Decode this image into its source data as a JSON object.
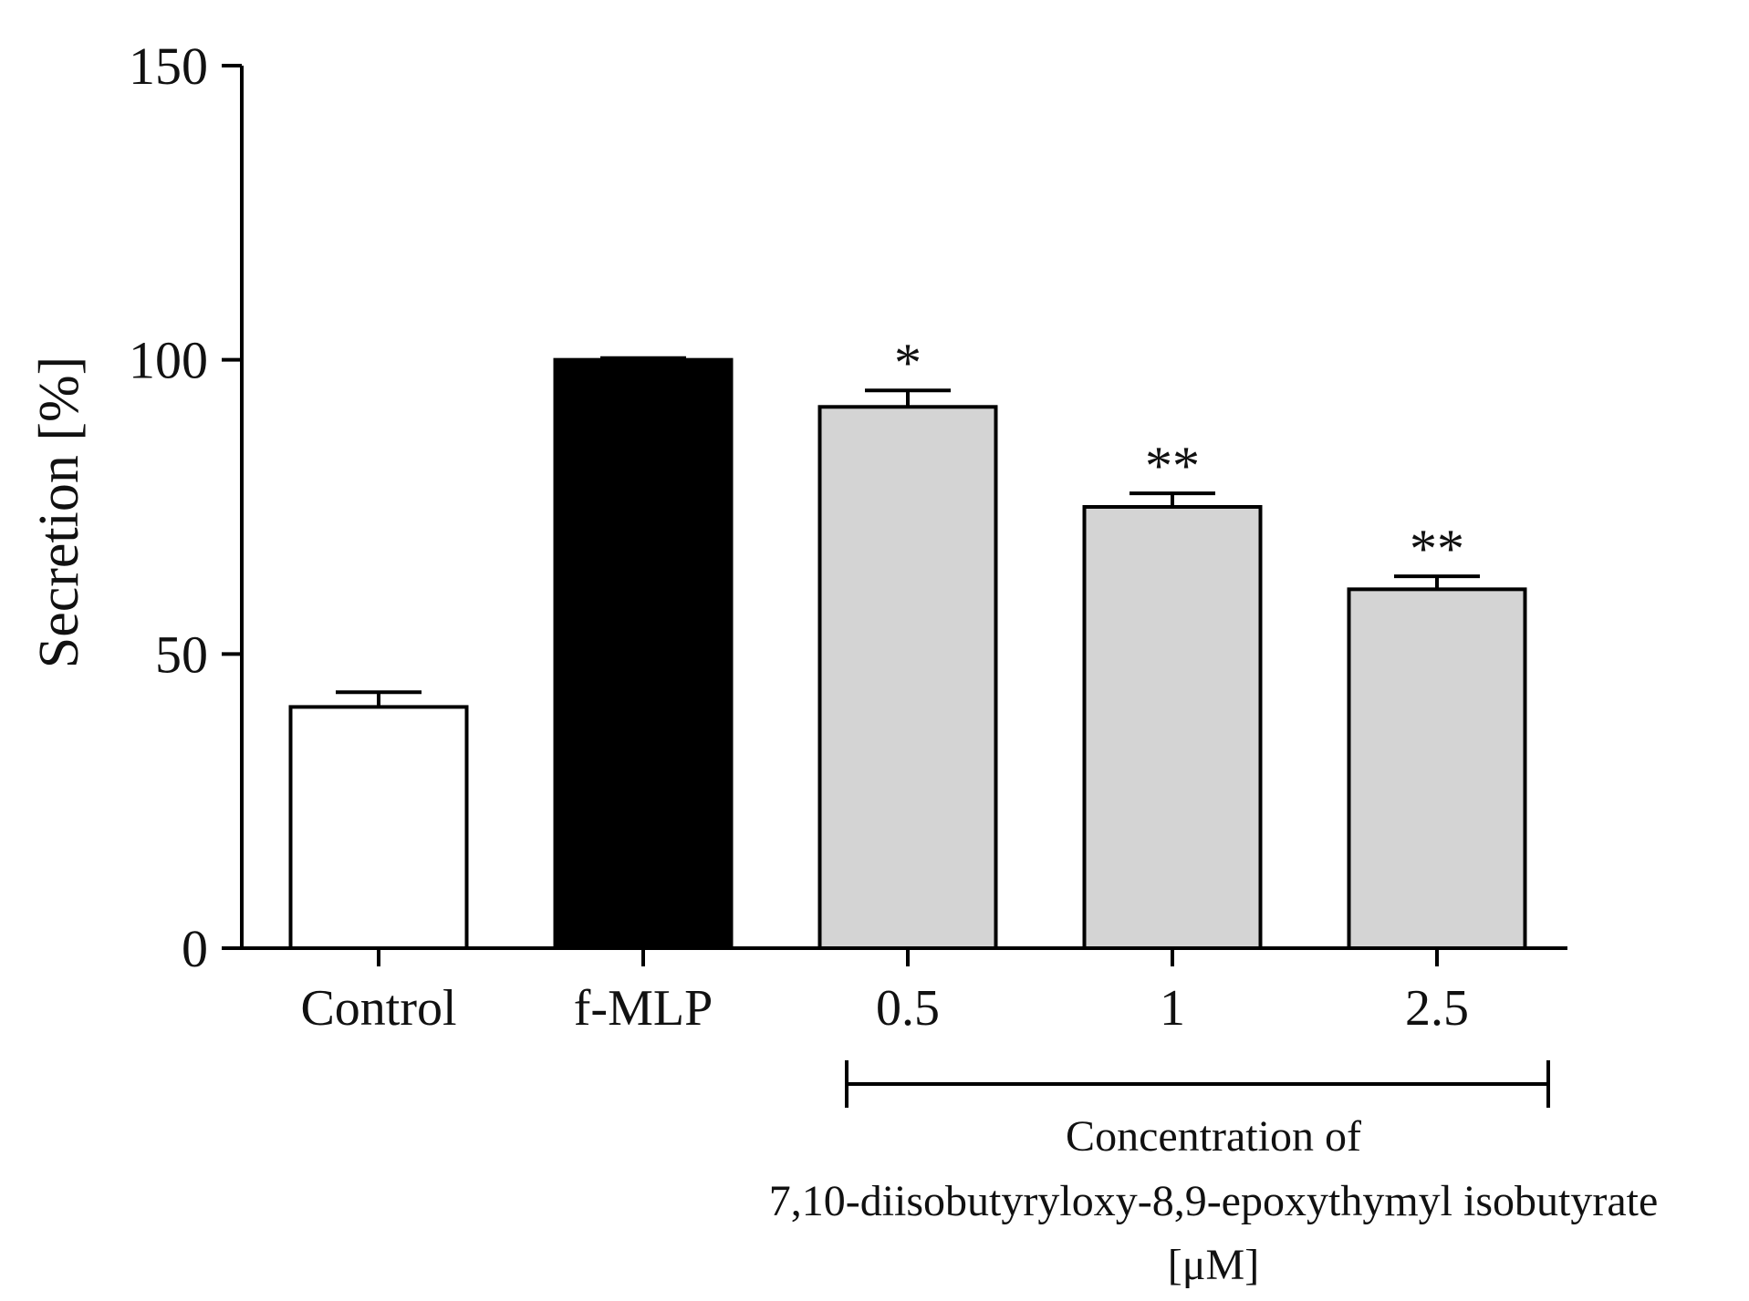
{
  "chart_data": {
    "type": "bar",
    "title": "",
    "xlabel": "",
    "ylabel": "Secretion [%]",
    "ylim": [
      0,
      150
    ],
    "yticks": [
      0,
      50,
      100,
      150
    ],
    "grid": false,
    "categories": [
      "Control",
      "f-MLP",
      "0.5",
      "1",
      "2.5"
    ],
    "values": [
      41,
      100,
      92,
      75,
      61
    ],
    "errors": [
      2.5,
      0.3,
      2.8,
      2.3,
      2.2
    ],
    "significance": [
      "",
      "",
      "*",
      "**",
      "**"
    ],
    "bar_colors": [
      "#ffffff",
      "#000000",
      "#d4d4d4",
      "#d4d4d4",
      "#d4d4d4"
    ],
    "edge_color": "#000000",
    "group_bracket": {
      "categories": [
        "0.5",
        "1",
        "2.5"
      ],
      "label_lines": [
        "Concentration of",
        "7,10-diisobutyryloxy-8,9-epoxythymyl isobutyrate",
        "[μM]"
      ]
    }
  }
}
